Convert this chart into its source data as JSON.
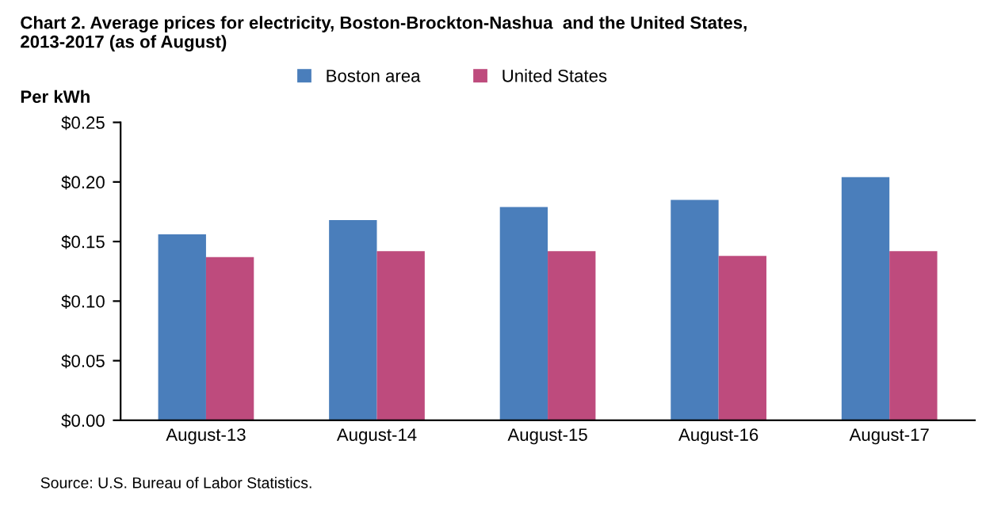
{
  "chart_data": {
    "type": "bar",
    "title": "Chart 2. Average prices for electricity, Boston-Brockton-Nashua  and the United States,\n2013-2017 (as of August)",
    "ylabel": "Per kWh",
    "categories": [
      "August-13",
      "August-14",
      "August-15",
      "August-16",
      "August-17"
    ],
    "series": [
      {
        "name": "Boston area",
        "color": "#4a7ebb",
        "values": [
          0.156,
          0.168,
          0.179,
          0.185,
          0.204
        ]
      },
      {
        "name": "United States",
        "color": "#be4b7d",
        "values": [
          0.137,
          0.142,
          0.142,
          0.138,
          0.142
        ]
      }
    ],
    "ylim": [
      0,
      0.25
    ],
    "yticks": [
      {
        "value": 0,
        "label": "$0.00"
      },
      {
        "value": 0.05,
        "label": "$0.05"
      },
      {
        "value": 0.1,
        "label": "$0.10"
      },
      {
        "value": 0.15,
        "label": "$0.15"
      },
      {
        "value": 0.2,
        "label": "$0.20"
      },
      {
        "value": 0.25,
        "label": "$0.25"
      }
    ],
    "legend": "top",
    "grid": false,
    "annotations": [
      "Source: U.S. Bureau of Labor Statistics."
    ]
  }
}
